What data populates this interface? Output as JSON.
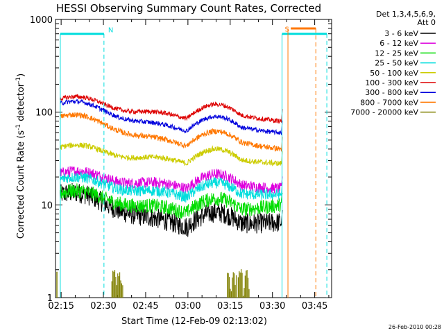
{
  "chart_data": {
    "type": "line",
    "title": "HESSI Observing Summary Count Rates, Corrected",
    "xlabel": "Start Time (12-Feb-09 02:13:02)",
    "ylabel_main": "Corrected Count Rate (s",
    "ylabel_sup1": "-1",
    "ylabel_mid": " detector",
    "ylabel_sup2": "-1",
    "ylabel_end": ")",
    "y_scale": "log",
    "ylim": [
      1,
      1000
    ],
    "y_ticks": [
      {
        "value": 1,
        "label": "1"
      },
      {
        "value": 10,
        "label": "10"
      },
      {
        "value": 100,
        "label": "100"
      },
      {
        "value": 1000,
        "label": "1000"
      }
    ],
    "xlim_min": [
      0,
      98
    ],
    "x_ticks": [
      {
        "value": 2,
        "label": "02:15"
      },
      {
        "value": 17,
        "label": "02:30"
      },
      {
        "value": 32,
        "label": "02:45"
      },
      {
        "value": 47,
        "label": "03:00"
      },
      {
        "value": 62,
        "label": "03:15"
      },
      {
        "value": 77,
        "label": "03:30"
      },
      {
        "value": 92,
        "label": "03:45"
      }
    ],
    "legend_header": [
      "Det 1,3,4,5,6,9,",
      "Att 0"
    ],
    "legend_position": "right",
    "series": [
      {
        "name": "3 - 6 keV",
        "color": "#000000",
        "start": 13,
        "dip": 6.0,
        "end": 6.5
      },
      {
        "name": "6 - 12 keV",
        "color": "#dd00dd",
        "start": 22,
        "dip": 15.5,
        "end": 15
      },
      {
        "name": "12 - 25 keV",
        "color": "#00dd00",
        "start": 13.5,
        "dip": 8.5,
        "end": 10
      },
      {
        "name": "25 - 50 keV",
        "color": "#00dddd",
        "start": 19,
        "dip": 12.5,
        "end": 13
      },
      {
        "name": "50 - 100 keV",
        "color": "#cccc00",
        "start": 42,
        "dip": 29,
        "end": 28
      },
      {
        "name": "100 - 300 keV",
        "color": "#dd0000",
        "start": 140,
        "dip": 88,
        "end": 80
      },
      {
        "name": "300 - 800 keV",
        "color": "#0000dd",
        "start": 125,
        "dip": 65,
        "end": 60
      },
      {
        "name": "800 - 7000 keV",
        "color": "#ff7700",
        "start": 90,
        "dip": 45,
        "end": 40
      },
      {
        "name": "7000 - 20000 keV",
        "color": "#808000",
        "start": 1,
        "dip": 1,
        "end": 1
      }
    ],
    "bursts_7000": [
      [
        20,
        24
      ],
      [
        61,
        69
      ]
    ],
    "annotations": {
      "saa_label": "N",
      "s_label": "S",
      "north_top_value": 700,
      "north_start_min": 1.7,
      "north_end_min": 17.2,
      "saa_start_min": 80.4,
      "saa_end_min": 96.3,
      "flare_marker_min": 82.5,
      "att_line_min": 92.4,
      "att_bar": [
        83.5,
        92.4
      ],
      "att_bar_value": 800
    },
    "footer_date": "26-Feb-2010 00:28"
  }
}
